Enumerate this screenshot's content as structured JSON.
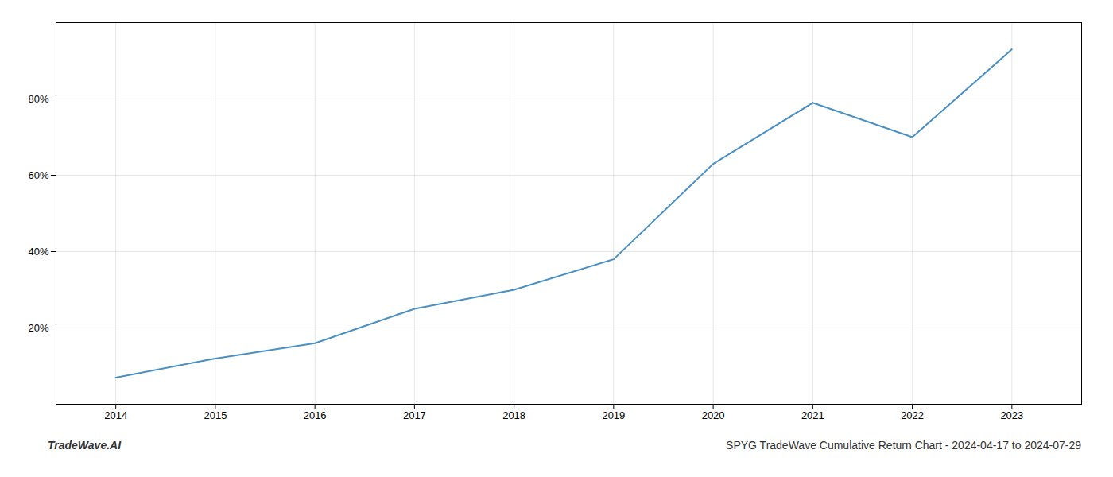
{
  "chart_data": {
    "type": "line",
    "x": [
      2014,
      2015,
      2016,
      2017,
      2018,
      2019,
      2020,
      2021,
      2022,
      2023
    ],
    "values": [
      7,
      12,
      16,
      25,
      30,
      38,
      63,
      79,
      70,
      93
    ],
    "color": "#4a90c4",
    "xlim": [
      2013.4,
      2023.7
    ],
    "xticks": [
      2014,
      2015,
      2016,
      2017,
      2018,
      2019,
      2020,
      2021,
      2022,
      2023
    ],
    "ylim": [
      0,
      100
    ],
    "yticks": [
      {
        "value": 20,
        "label": "20%"
      },
      {
        "value": 40,
        "label": "40%"
      },
      {
        "value": 60,
        "label": "60%"
      },
      {
        "value": 80,
        "label": "80%"
      }
    ],
    "grid": true,
    "annotations": [
      "TradeWave.AI",
      "SPYG TradeWave Cumulative Return Chart - 2024-04-17 to 2024-07-29"
    ]
  }
}
